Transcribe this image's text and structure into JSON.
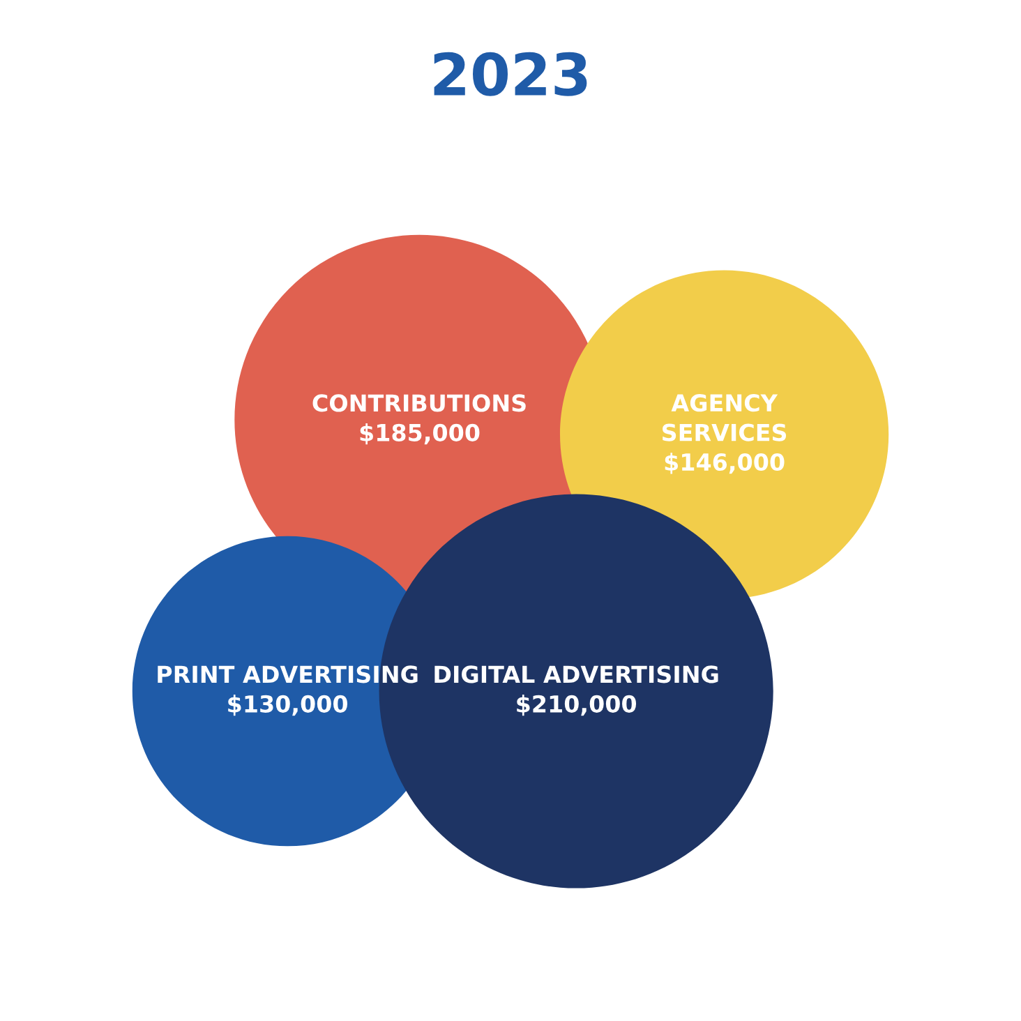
{
  "chart_data": {
    "type": "other",
    "title": "2023",
    "categories": [
      "CONTRIBUTIONS",
      "AGENCY\nSERVICES",
      "PRINT ADVERTISING",
      "DIGITAL ADVERTISING"
    ],
    "values": [
      185000,
      146000,
      130000,
      210000
    ],
    "value_labels": [
      "$185,000",
      "$146,000",
      "$130,000",
      "$210,000"
    ],
    "colors": [
      "#e06150",
      "#f2cd4a",
      "#1f5ba8",
      "#1e3464"
    ]
  }
}
